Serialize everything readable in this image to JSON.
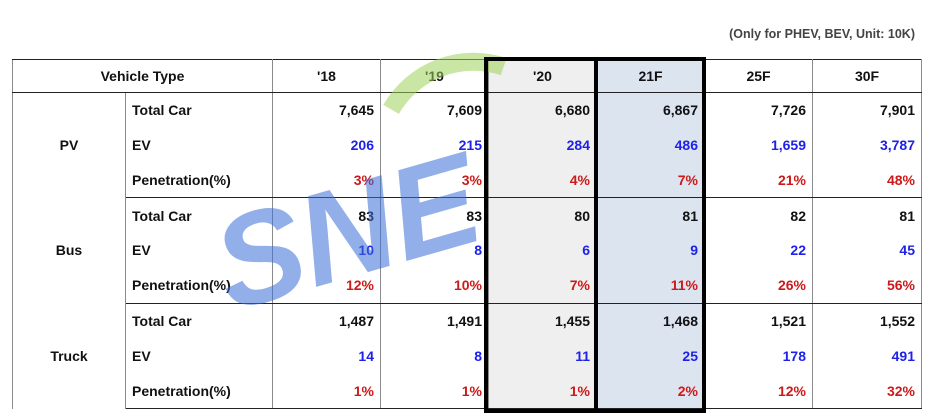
{
  "note": "(Only for PHEV, BEV, Unit: 10K)",
  "header": {
    "vehicle_type": "Vehicle Type",
    "years": [
      "'18",
      "'19",
      "'20",
      "21F",
      "25F",
      "30F"
    ]
  },
  "groups": [
    {
      "type": "PV",
      "rows": [
        {
          "metric": "Total Car",
          "values": [
            "7,645",
            "7,609",
            "6,680",
            "6,867",
            "7,726",
            "7,901"
          ]
        },
        {
          "metric": "EV",
          "values": [
            "206",
            "215",
            "284",
            "486",
            "1,659",
            "3,787"
          ]
        },
        {
          "metric": "Penetration(%)",
          "values": [
            "3%",
            "3%",
            "4%",
            "7%",
            "21%",
            "48%"
          ]
        }
      ]
    },
    {
      "type": "Bus",
      "rows": [
        {
          "metric": "Total Car",
          "values": [
            "83",
            "83",
            "80",
            "81",
            "82",
            "81"
          ]
        },
        {
          "metric": "EV",
          "values": [
            "10",
            "8",
            "6",
            "9",
            "22",
            "45"
          ]
        },
        {
          "metric": "Penetration(%)",
          "values": [
            "12%",
            "10%",
            "7%",
            "11%",
            "26%",
            "56%"
          ]
        }
      ]
    },
    {
      "type": "Truck",
      "rows": [
        {
          "metric": "Total Car",
          "values": [
            "1,487",
            "1,491",
            "1,455",
            "1,468",
            "1,521",
            "1,552"
          ]
        },
        {
          "metric": "EV",
          "values": [
            "14",
            "8",
            "11",
            "25",
            "178",
            "491"
          ]
        },
        {
          "metric": "Penetration(%)",
          "values": [
            "1%",
            "1%",
            "1%",
            "2%",
            "12%",
            "32%"
          ]
        }
      ]
    }
  ],
  "watermark": {
    "text": "SNE Research"
  },
  "colors": {
    "ev_value": "#1e22e8",
    "penetration_value": "#cc1a1a",
    "highlight_20": "#efefef",
    "highlight_21F": "#dce4f0"
  }
}
